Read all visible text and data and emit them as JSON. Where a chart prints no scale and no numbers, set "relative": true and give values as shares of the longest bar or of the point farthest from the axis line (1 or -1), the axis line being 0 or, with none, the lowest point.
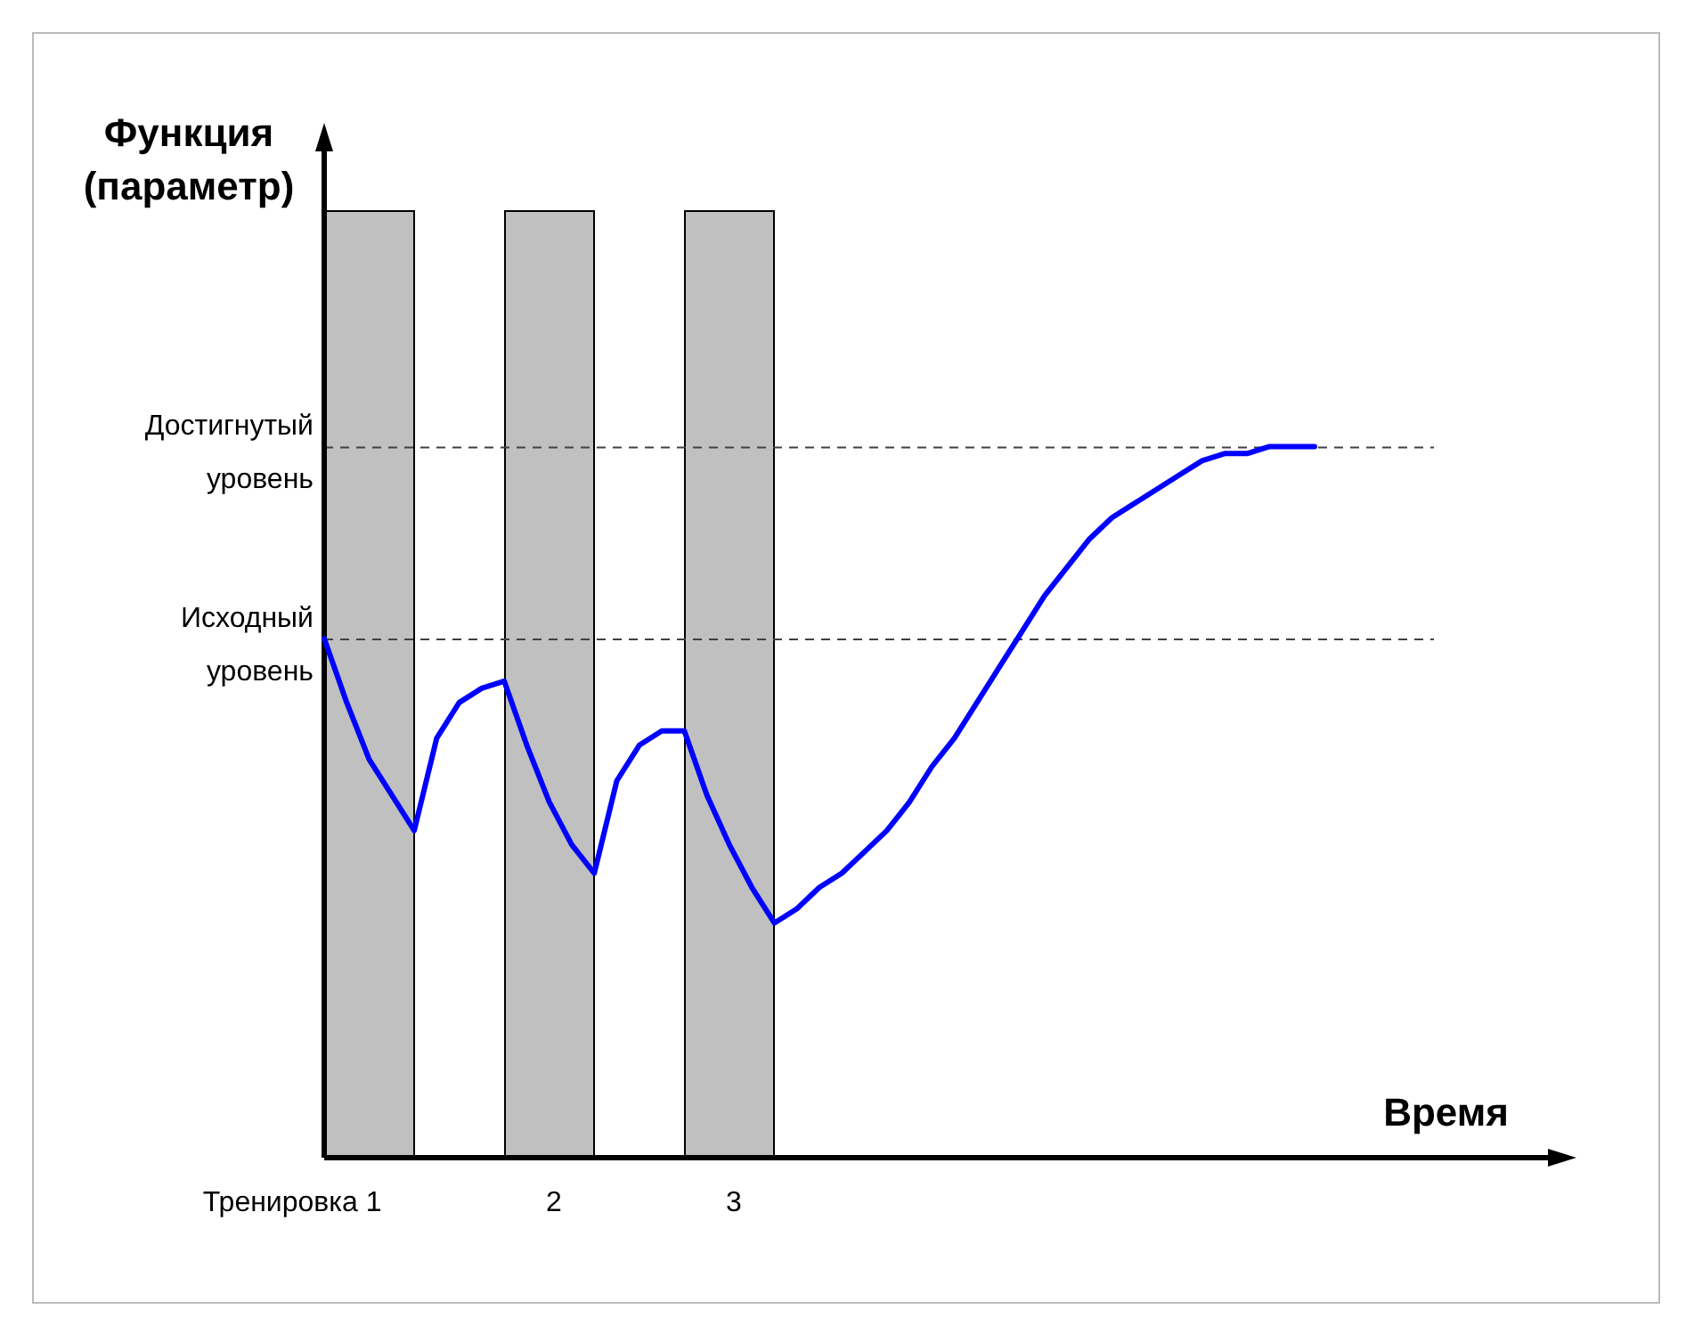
{
  "chart_data": {
    "type": "line",
    "relative": true,
    "xlabel": "Время",
    "categories": [
      null,
      null,
      null,
      null,
      null,
      null,
      null,
      null,
      null,
      null,
      null,
      null,
      null,
      null,
      null,
      null,
      null,
      null,
      null,
      null,
      null,
      null,
      null,
      null,
      null,
      null,
      null,
      null,
      null,
      null,
      null,
      null,
      null,
      null,
      null,
      null,
      null,
      null,
      null,
      null,
      null,
      null,
      null,
      null,
      null
    ],
    "marker": "none",
    "line_style": "solid",
    "series": [
      {
        "color": "#0000ff",
        "values": [
          0.73,
          0.64,
          0.56,
          0.51,
          0.46,
          0.59,
          0.64,
          0.66,
          0.67,
          0.58,
          0.5,
          0.44,
          0.4,
          0.53,
          0.58,
          0.6,
          0.6,
          0.51,
          0.44,
          0.38,
          0.33,
          0.35,
          0.38,
          0.4,
          0.43,
          0.46,
          0.5,
          0.55,
          0.59,
          0.64,
          0.69,
          0.74,
          0.79,
          0.83,
          0.87,
          0.9,
          0.92,
          0.94,
          0.96,
          0.98,
          0.99,
          0.99,
          1.0,
          1.0,
          1.0
        ]
      }
    ],
    "annotations": [
      "Функция (параметр)",
      "Тренировка 1",
      "2",
      "3"
    ],
    "ref_lines": [
      {
        "axis": "y",
        "value": 1.0,
        "label": "Достигнутый уровень",
        "color": "#404040",
        "line_style": "dashed"
      },
      {
        "axis": "y",
        "value": 0.73,
        "label": "Исходный уровень",
        "color": "#404040",
        "line_style": "dashed"
      }
    ]
  }
}
